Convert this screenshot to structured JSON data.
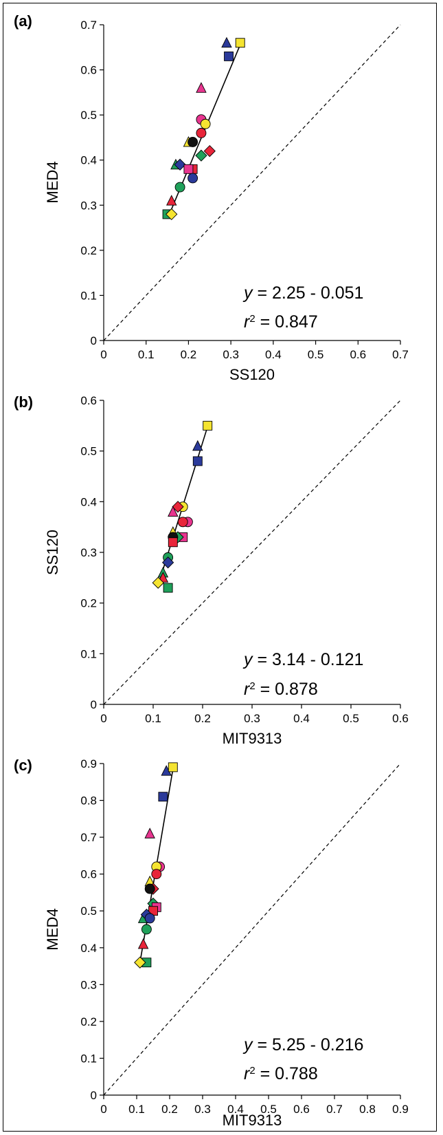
{
  "chart_data": [
    {
      "type": "scatter",
      "panel_label": "(a)",
      "xlabel": "SS120",
      "ylabel": "MED4",
      "xlim": [
        0,
        0.7
      ],
      "ylim": [
        0,
        0.7
      ],
      "x_ticks": [
        "0",
        "0.1",
        "0.2",
        "0.3",
        "0.4",
        "0.5",
        "0.6",
        "0.7"
      ],
      "y_ticks": [
        "0",
        "0.1",
        "0.2",
        "0.3",
        "0.4",
        "0.5",
        "0.6",
        "0.7"
      ],
      "equation_y": "y",
      "equation_rest": " = 2.25 - 0.051",
      "r2_r": "r",
      "r2_sup": "2",
      "r2_rest": " = 0.847",
      "diagonal": true,
      "fit_line": [
        [
          0.155,
          0.28
        ],
        [
          0.323,
          0.658
        ]
      ],
      "points": [
        {
          "x": 0.29,
          "y": 0.66,
          "marker": "triangle",
          "color": "#2b3a9a"
        },
        {
          "x": 0.322,
          "y": 0.66,
          "marker": "square",
          "color": "#f5e431"
        },
        {
          "x": 0.295,
          "y": 0.63,
          "marker": "square",
          "color": "#2b3a9a"
        },
        {
          "x": 0.23,
          "y": 0.56,
          "marker": "triangle",
          "color": "#e8358f"
        },
        {
          "x": 0.23,
          "y": 0.49,
          "marker": "circle",
          "color": "#e8358f"
        },
        {
          "x": 0.24,
          "y": 0.48,
          "marker": "circle",
          "color": "#f5e431"
        },
        {
          "x": 0.23,
          "y": 0.46,
          "marker": "circle",
          "color": "#e8253a"
        },
        {
          "x": 0.2,
          "y": 0.44,
          "marker": "triangle",
          "color": "#f5e431"
        },
        {
          "x": 0.21,
          "y": 0.44,
          "marker": "circle",
          "color": "#111111"
        },
        {
          "x": 0.25,
          "y": 0.42,
          "marker": "diamond",
          "color": "#e8253a"
        },
        {
          "x": 0.23,
          "y": 0.41,
          "marker": "diamond",
          "color": "#1fa05a"
        },
        {
          "x": 0.17,
          "y": 0.39,
          "marker": "triangle",
          "color": "#1fa05a"
        },
        {
          "x": 0.18,
          "y": 0.39,
          "marker": "diamond",
          "color": "#2b3a9a"
        },
        {
          "x": 0.21,
          "y": 0.38,
          "marker": "square",
          "color": "#e8253a"
        },
        {
          "x": 0.2,
          "y": 0.38,
          "marker": "square",
          "color": "#e8358f"
        },
        {
          "x": 0.21,
          "y": 0.36,
          "marker": "circle",
          "color": "#2b3a9a"
        },
        {
          "x": 0.18,
          "y": 0.34,
          "marker": "circle",
          "color": "#1fa05a"
        },
        {
          "x": 0.16,
          "y": 0.31,
          "marker": "triangle",
          "color": "#e8253a"
        },
        {
          "x": 0.15,
          "y": 0.28,
          "marker": "square",
          "color": "#1fa05a"
        },
        {
          "x": 0.16,
          "y": 0.28,
          "marker": "diamond",
          "color": "#f5e431"
        }
      ]
    },
    {
      "type": "scatter",
      "panel_label": "(b)",
      "xlabel": "MIT9313",
      "ylabel": "SS120",
      "xlim": [
        0,
        0.6
      ],
      "ylim": [
        0,
        0.6
      ],
      "x_ticks": [
        "0",
        "0.1",
        "0.2",
        "0.3",
        "0.4",
        "0.5",
        "0.6"
      ],
      "y_ticks": [
        "0",
        "0.1",
        "0.2",
        "0.3",
        "0.4",
        "0.5",
        "0.6"
      ],
      "equation_y": "y",
      "equation_rest": " = 3.14 - 0.121",
      "r2_r": "r",
      "r2_sup": "2",
      "r2_rest": " = 0.878",
      "diagonal": true,
      "fit_line": [
        [
          0.11,
          0.235
        ],
        [
          0.21,
          0.548
        ]
      ],
      "points": [
        {
          "x": 0.21,
          "y": 0.55,
          "marker": "square",
          "color": "#f5e431"
        },
        {
          "x": 0.19,
          "y": 0.51,
          "marker": "triangle",
          "color": "#2b3a9a"
        },
        {
          "x": 0.19,
          "y": 0.48,
          "marker": "square",
          "color": "#2b3a9a"
        },
        {
          "x": 0.16,
          "y": 0.39,
          "marker": "circle",
          "color": "#f5e431"
        },
        {
          "x": 0.15,
          "y": 0.39,
          "marker": "diamond",
          "color": "#e8253a"
        },
        {
          "x": 0.14,
          "y": 0.38,
          "marker": "triangle",
          "color": "#e8358f"
        },
        {
          "x": 0.17,
          "y": 0.36,
          "marker": "circle",
          "color": "#e8358f"
        },
        {
          "x": 0.16,
          "y": 0.36,
          "marker": "circle",
          "color": "#e8253a"
        },
        {
          "x": 0.14,
          "y": 0.34,
          "marker": "triangle",
          "color": "#f5e431"
        },
        {
          "x": 0.16,
          "y": 0.33,
          "marker": "square",
          "color": "#e8358f"
        },
        {
          "x": 0.15,
          "y": 0.33,
          "marker": "diamond",
          "color": "#1fa05a"
        },
        {
          "x": 0.14,
          "y": 0.33,
          "marker": "circle",
          "color": "#111111"
        },
        {
          "x": 0.14,
          "y": 0.32,
          "marker": "square",
          "color": "#e8253a"
        },
        {
          "x": 0.13,
          "y": 0.29,
          "marker": "circle",
          "color": "#1fa05a"
        },
        {
          "x": 0.13,
          "y": 0.28,
          "marker": "diamond",
          "color": "#2b3a9a"
        },
        {
          "x": 0.12,
          "y": 0.26,
          "marker": "triangle",
          "color": "#1fa05a"
        },
        {
          "x": 0.12,
          "y": 0.25,
          "marker": "triangle",
          "color": "#e8253a"
        },
        {
          "x": 0.11,
          "y": 0.24,
          "marker": "diamond",
          "color": "#f5e431"
        },
        {
          "x": 0.13,
          "y": 0.23,
          "marker": "square",
          "color": "#1fa05a"
        }
      ]
    },
    {
      "type": "scatter",
      "panel_label": "(c)",
      "xlabel": "MIT9313",
      "ylabel": "MED4",
      "xlim": [
        0,
        0.9
      ],
      "ylim": [
        0,
        0.9
      ],
      "x_ticks": [
        "0",
        "0.1",
        "0.2",
        "0.3",
        "0.4",
        "0.5",
        "0.6",
        "0.7",
        "0.8",
        "0.9"
      ],
      "y_ticks": [
        "0",
        "0.1",
        "0.2",
        "0.3",
        "0.4",
        "0.5",
        "0.6",
        "0.7",
        "0.8",
        "0.9"
      ],
      "equation_y": "y",
      "equation_rest": " = 5.25 - 0.216",
      "r2_r": "r",
      "r2_sup": "2",
      "r2_rest": " = 0.788",
      "diagonal": true,
      "fit_line": [
        [
          0.11,
          0.36
        ],
        [
          0.21,
          0.885
        ]
      ],
      "points": [
        {
          "x": 0.19,
          "y": 0.88,
          "marker": "triangle",
          "color": "#2b3a9a"
        },
        {
          "x": 0.21,
          "y": 0.89,
          "marker": "square",
          "color": "#f5e431"
        },
        {
          "x": 0.18,
          "y": 0.81,
          "marker": "square",
          "color": "#2b3a9a"
        },
        {
          "x": 0.14,
          "y": 0.71,
          "marker": "triangle",
          "color": "#e8358f"
        },
        {
          "x": 0.17,
          "y": 0.62,
          "marker": "circle",
          "color": "#e8358f"
        },
        {
          "x": 0.16,
          "y": 0.62,
          "marker": "circle",
          "color": "#f5e431"
        },
        {
          "x": 0.16,
          "y": 0.6,
          "marker": "circle",
          "color": "#e8253a"
        },
        {
          "x": 0.14,
          "y": 0.58,
          "marker": "triangle",
          "color": "#f5e431"
        },
        {
          "x": 0.15,
          "y": 0.56,
          "marker": "diamond",
          "color": "#e8253a"
        },
        {
          "x": 0.14,
          "y": 0.56,
          "marker": "circle",
          "color": "#111111"
        },
        {
          "x": 0.15,
          "y": 0.52,
          "marker": "diamond",
          "color": "#1fa05a"
        },
        {
          "x": 0.16,
          "y": 0.51,
          "marker": "square",
          "color": "#e8358f"
        },
        {
          "x": 0.15,
          "y": 0.5,
          "marker": "square",
          "color": "#e8253a"
        },
        {
          "x": 0.12,
          "y": 0.48,
          "marker": "triangle",
          "color": "#1fa05a"
        },
        {
          "x": 0.13,
          "y": 0.49,
          "marker": "diamond",
          "color": "#2b3a9a"
        },
        {
          "x": 0.14,
          "y": 0.48,
          "marker": "circle",
          "color": "#2b3a9a"
        },
        {
          "x": 0.13,
          "y": 0.45,
          "marker": "circle",
          "color": "#1fa05a"
        },
        {
          "x": 0.12,
          "y": 0.41,
          "marker": "triangle",
          "color": "#e8253a"
        },
        {
          "x": 0.13,
          "y": 0.36,
          "marker": "square",
          "color": "#1fa05a"
        },
        {
          "x": 0.11,
          "y": 0.36,
          "marker": "diamond",
          "color": "#f5e431"
        }
      ]
    }
  ]
}
